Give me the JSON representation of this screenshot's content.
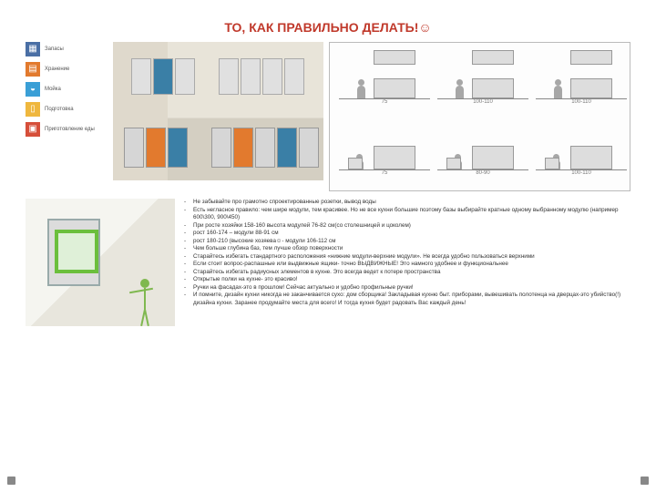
{
  "title": "ТО, КАК ПРАВИЛЬНО ДЕЛАТЬ!☺",
  "title_color": "#c0392b",
  "legend": [
    {
      "label": "Запасы",
      "color": "#4a6fa5"
    },
    {
      "label": "Хранение",
      "color": "#e27a2e"
    },
    {
      "label": "Мойка",
      "color": "#3a9fd6"
    },
    {
      "label": "Подготовка",
      "color": "#efb73e"
    },
    {
      "label": "Приготовление еды",
      "color": "#d64f3a"
    }
  ],
  "ergo": {
    "top_dims": [
      "75",
      "100-110",
      "100-110"
    ],
    "bot_dims": [
      "75",
      "80-90",
      "100-110"
    ]
  },
  "bullets": [
    "Не забывайте про грамотно спроектированные розетки, вывод воды",
    "Есть негласное правило: чем шире модули, тем красивее. Но не все кухни большие поэтому базы выбирайте кратные одному выбранному модулю (например 600\\300, 900\\450)",
    "При росте хозяйки 158-160 высота модулей 76-82 см(со столешницей и цоколем)",
    "                          рост 160-174 – модули 88-91 см",
    "                          рост 180-210 (высокие хозяева☺- модули 106-112 см",
    "Чем больше глубина баз, тем лучше обзор поверхности",
    "Старайтесь избегать стандартного расположения «нижние модули-верхние модули». Не всегда удобно пользоваться верхними",
    "Если стоит вопрос-распашные или выдвижные ящики- точно ВЫДВИЖНЫЕ! Это намного удобнее и функциональнее",
    "Старайтесь избегать радиусных элементов в кухне. Это всегда ведет к потере пространства",
    "Открытые полки на кухне- это красиво!",
    "Ручки на фасадах-это в прошлом! Сейчас актуально и удобно профильные ручки!",
    "И помните, дизайн кухни никогда не заканчивается сухо: дом сборщика! Закладывая кухню быт. приборами, вывешивать полотенца на дверцах-это убийство(!) дизайна кухни. Заранее продумайте места для всего! И тогда кухня будет радовать Вас каждый день!"
  ]
}
